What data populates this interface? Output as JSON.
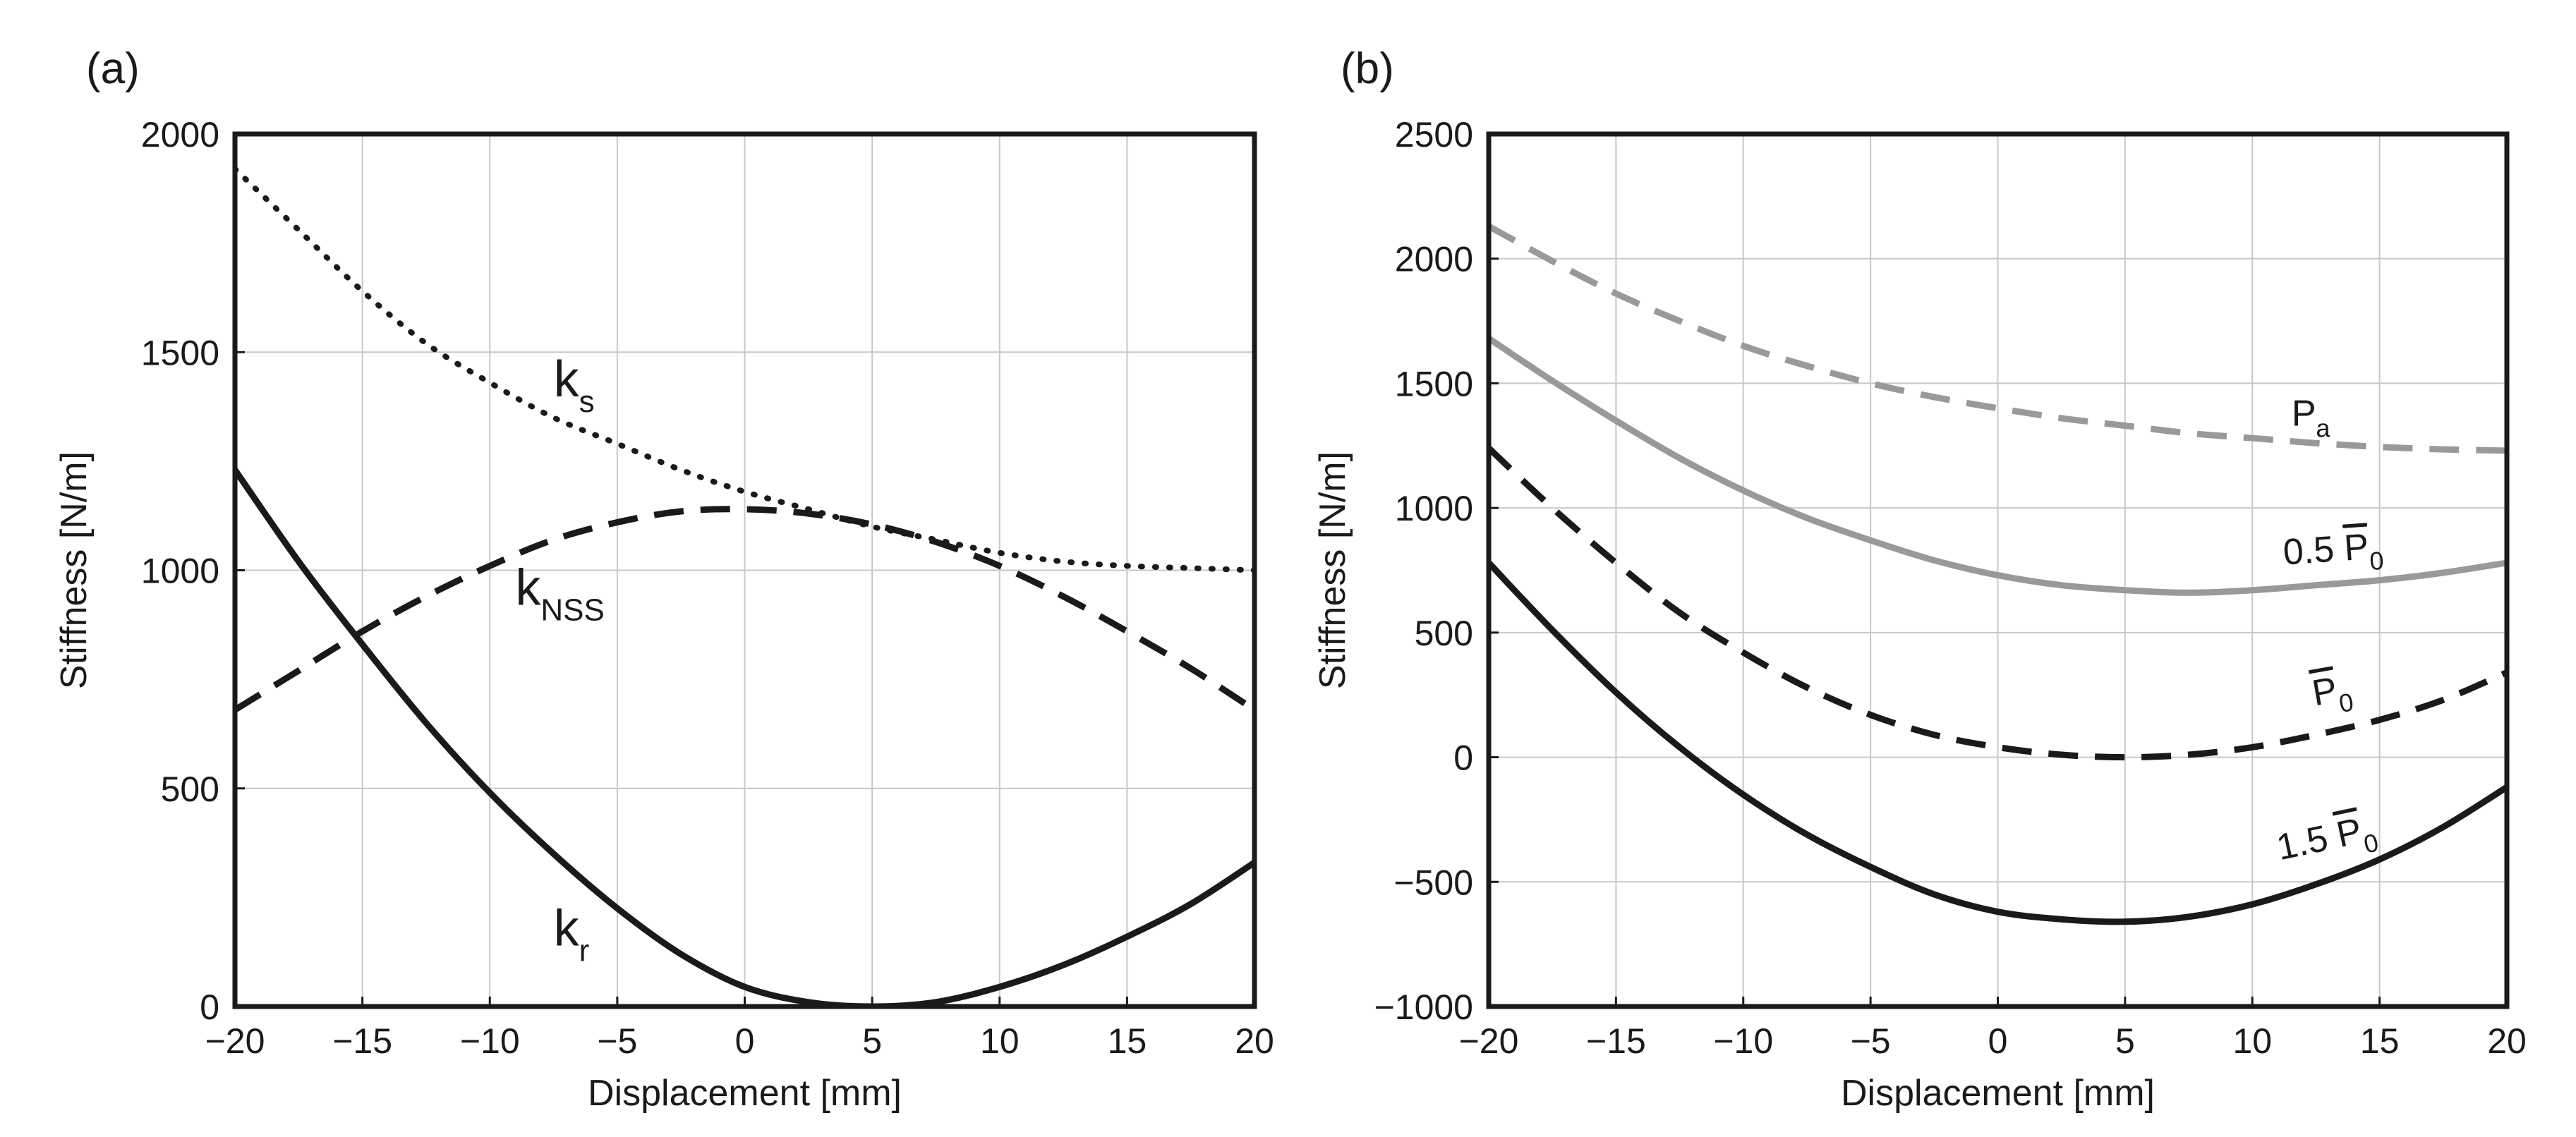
{
  "chart_data": [
    {
      "type": "line",
      "panel_label": "(a)",
      "xlabel": "Displacement [mm]",
      "ylabel": "Stiffness [N/m]",
      "xlim": [
        -20,
        20
      ],
      "ylim": [
        0,
        2000
      ],
      "xticks": [
        -20,
        -15,
        -10,
        -5,
        0,
        5,
        10,
        15,
        20
      ],
      "yticks": [
        0,
        500,
        1000,
        1500,
        2000
      ],
      "xtick_labels": [
        "−20",
        "−15",
        "−10",
        "−5",
        "0",
        "5",
        "10",
        "15",
        "20"
      ],
      "ytick_labels": [
        "0",
        "500",
        "1000",
        "1500",
        "2000"
      ],
      "grid": true,
      "x": [
        -20,
        -17.5,
        -15,
        -12.5,
        -10,
        -7.5,
        -5,
        -2.5,
        0,
        2.5,
        5,
        7.5,
        10,
        12.5,
        15,
        17.5,
        20
      ],
      "series": [
        {
          "name": "k_s",
          "label_main": "k",
          "label_sub": "s",
          "style": "dotted",
          "color": "#1a1a1a",
          "values": [
            1920,
            1780,
            1640,
            1520,
            1430,
            1350,
            1290,
            1230,
            1180,
            1140,
            1100,
            1070,
            1040,
            1020,
            1010,
            1005,
            1000
          ]
        },
        {
          "name": "k_NSS",
          "label_main": "k",
          "label_sub": "NSS",
          "style": "dashed",
          "color": "#1a1a1a",
          "values": [
            680,
            770,
            860,
            940,
            1010,
            1070,
            1110,
            1135,
            1140,
            1130,
            1105,
            1065,
            1010,
            940,
            860,
            775,
            680
          ]
        },
        {
          "name": "k_r",
          "label_main": "k",
          "label_sub": "r",
          "style": "solid",
          "color": "#1a1a1a",
          "values": [
            1230,
            1020,
            830,
            650,
            490,
            350,
            225,
            120,
            45,
            10,
            0,
            10,
            45,
            95,
            160,
            235,
            330
          ]
        }
      ]
    },
    {
      "type": "line",
      "panel_label": "(b)",
      "xlabel": "Displacement [mm]",
      "ylabel": "Stiffness [N/m]",
      "xlim": [
        -20,
        20
      ],
      "ylim": [
        -1000,
        2500
      ],
      "xticks": [
        -20,
        -15,
        -10,
        -5,
        0,
        5,
        10,
        15,
        20
      ],
      "yticks": [
        -1000,
        -500,
        0,
        500,
        1000,
        1500,
        2000,
        2500
      ],
      "xtick_labels": [
        "−20",
        "−15",
        "−10",
        "−5",
        "0",
        "5",
        "10",
        "15",
        "20"
      ],
      "ytick_labels": [
        "−1000",
        "−500",
        "0",
        "500",
        "1000",
        "1500",
        "2000",
        "2500"
      ],
      "grid": true,
      "x": [
        -20,
        -17.5,
        -15,
        -12.5,
        -10,
        -7.5,
        -5,
        -2.5,
        0,
        2.5,
        5,
        7.5,
        10,
        12.5,
        15,
        17.5,
        20
      ],
      "series": [
        {
          "name": "P_a",
          "label_prefix": "",
          "label_main": "P",
          "label_sub": "a",
          "overbar": false,
          "style": "dashed",
          "color": "#999999",
          "values": [
            2130,
            1990,
            1860,
            1750,
            1650,
            1570,
            1500,
            1445,
            1400,
            1360,
            1330,
            1300,
            1280,
            1260,
            1245,
            1235,
            1230
          ]
        },
        {
          "name": "0.5 P_0",
          "label_prefix": "0.5 ",
          "label_main": "P",
          "label_sub": "0",
          "overbar": true,
          "style": "solid",
          "color": "#999999",
          "values": [
            1680,
            1510,
            1350,
            1200,
            1070,
            960,
            870,
            790,
            730,
            690,
            670,
            660,
            670,
            690,
            710,
            740,
            780
          ]
        },
        {
          "name": "P_0",
          "label_prefix": "",
          "label_main": "P",
          "label_sub": "0",
          "overbar": true,
          "style": "dashed",
          "color": "#1a1a1a",
          "values": [
            1240,
            1000,
            780,
            580,
            420,
            280,
            170,
            90,
            40,
            10,
            0,
            10,
            40,
            90,
            150,
            230,
            340
          ]
        },
        {
          "name": "1.5 P_0",
          "label_prefix": "1.5 ",
          "label_main": "P",
          "label_sub": "0",
          "overbar": true,
          "style": "solid",
          "color": "#1a1a1a",
          "values": [
            780,
            510,
            260,
            40,
            -150,
            -310,
            -440,
            -550,
            -620,
            -650,
            -660,
            -640,
            -590,
            -510,
            -410,
            -280,
            -120
          ]
        }
      ]
    }
  ]
}
